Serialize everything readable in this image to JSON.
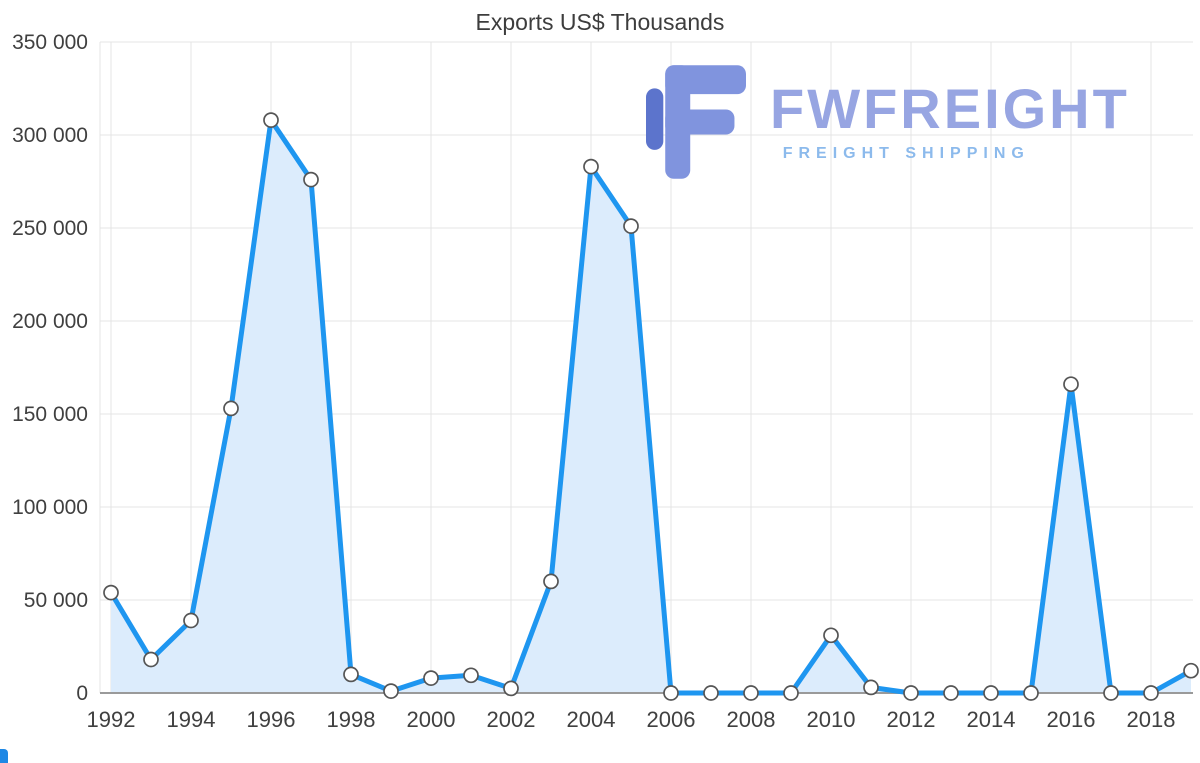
{
  "chart_data": {
    "type": "area",
    "title": "Exports US$ Thousands",
    "x": [
      1992,
      1993,
      1994,
      1995,
      1996,
      1997,
      1998,
      1999,
      2000,
      2001,
      2002,
      2003,
      2004,
      2005,
      2006,
      2007,
      2008,
      2009,
      2010,
      2011,
      2012,
      2013,
      2014,
      2015,
      2016,
      2017,
      2018,
      2019
    ],
    "values": [
      54000,
      18000,
      39000,
      153000,
      308000,
      276000,
      10000,
      1000,
      8000,
      9500,
      2500,
      60000,
      283000,
      251000,
      0,
      0,
      0,
      0,
      31000,
      3000,
      0,
      0,
      0,
      0,
      166000,
      0,
      0,
      12000
    ],
    "ylim": [
      0,
      350000
    ],
    "y_ticks": [
      0,
      50000,
      100000,
      150000,
      200000,
      250000,
      300000,
      350000
    ],
    "y_tick_labels": [
      "0",
      "50 000",
      "100 000",
      "150 000",
      "200 000",
      "250 000",
      "300 000",
      "350 000"
    ],
    "x_ticks": [
      1992,
      1994,
      1996,
      1998,
      2000,
      2002,
      2004,
      2006,
      2008,
      2010,
      2012,
      2014,
      2016,
      2018
    ],
    "grid": true,
    "legend": "none",
    "line_color": "#1e96f0",
    "fill_color": "#dcecfc",
    "marker": "circle-white",
    "axis_color": "#9a9a9a"
  },
  "watermark": {
    "brand": "FWFREIGHT",
    "subtitle": "FREIGHT SHIPPING",
    "brand_color": "#97a5e2",
    "subtitle_color": "#8cbaec",
    "logo_main_color": "#8094de",
    "logo_accent_color": "#5c74cc"
  }
}
